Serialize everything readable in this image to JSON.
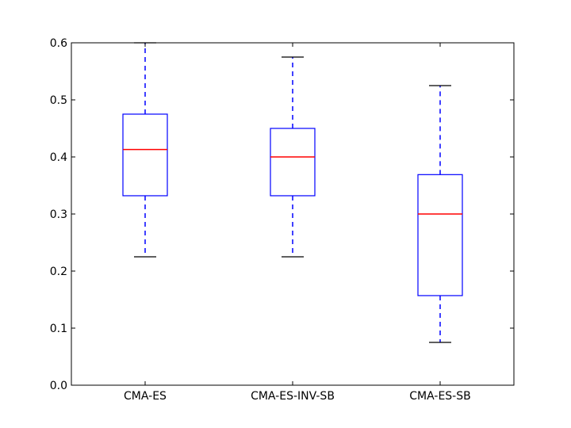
{
  "chart_data": {
    "type": "boxplot",
    "title": "",
    "xlabel": "",
    "ylabel": "",
    "ylim": [
      0,
      0.6
    ],
    "yticks": [
      0.0,
      0.1,
      0.2,
      0.3,
      0.4,
      0.5,
      0.6
    ],
    "ytick_labels": [
      "0.0",
      "0.1",
      "0.2",
      "0.3",
      "0.4",
      "0.5",
      "0.6"
    ],
    "categories": [
      "CMA-ES",
      "CMA-ES-INV-SB",
      "CMA-ES-SB"
    ],
    "boxes": [
      {
        "name": "CMA-ES",
        "whisker_low": 0.225,
        "q1": 0.332,
        "median": 0.413,
        "q3": 0.475,
        "whisker_high": 0.6
      },
      {
        "name": "CMA-ES-INV-SB",
        "whisker_low": 0.225,
        "q1": 0.332,
        "median": 0.4,
        "q3": 0.45,
        "whisker_high": 0.575
      },
      {
        "name": "CMA-ES-SB",
        "whisker_low": 0.075,
        "q1": 0.157,
        "median": 0.3,
        "q3": 0.369,
        "whisker_high": 0.525
      }
    ],
    "grid": false,
    "colors": {
      "box": "#0000ff",
      "median": "#ff0000",
      "whisker": "#0000ff",
      "cap": "#000000",
      "axes": "#000000"
    }
  }
}
